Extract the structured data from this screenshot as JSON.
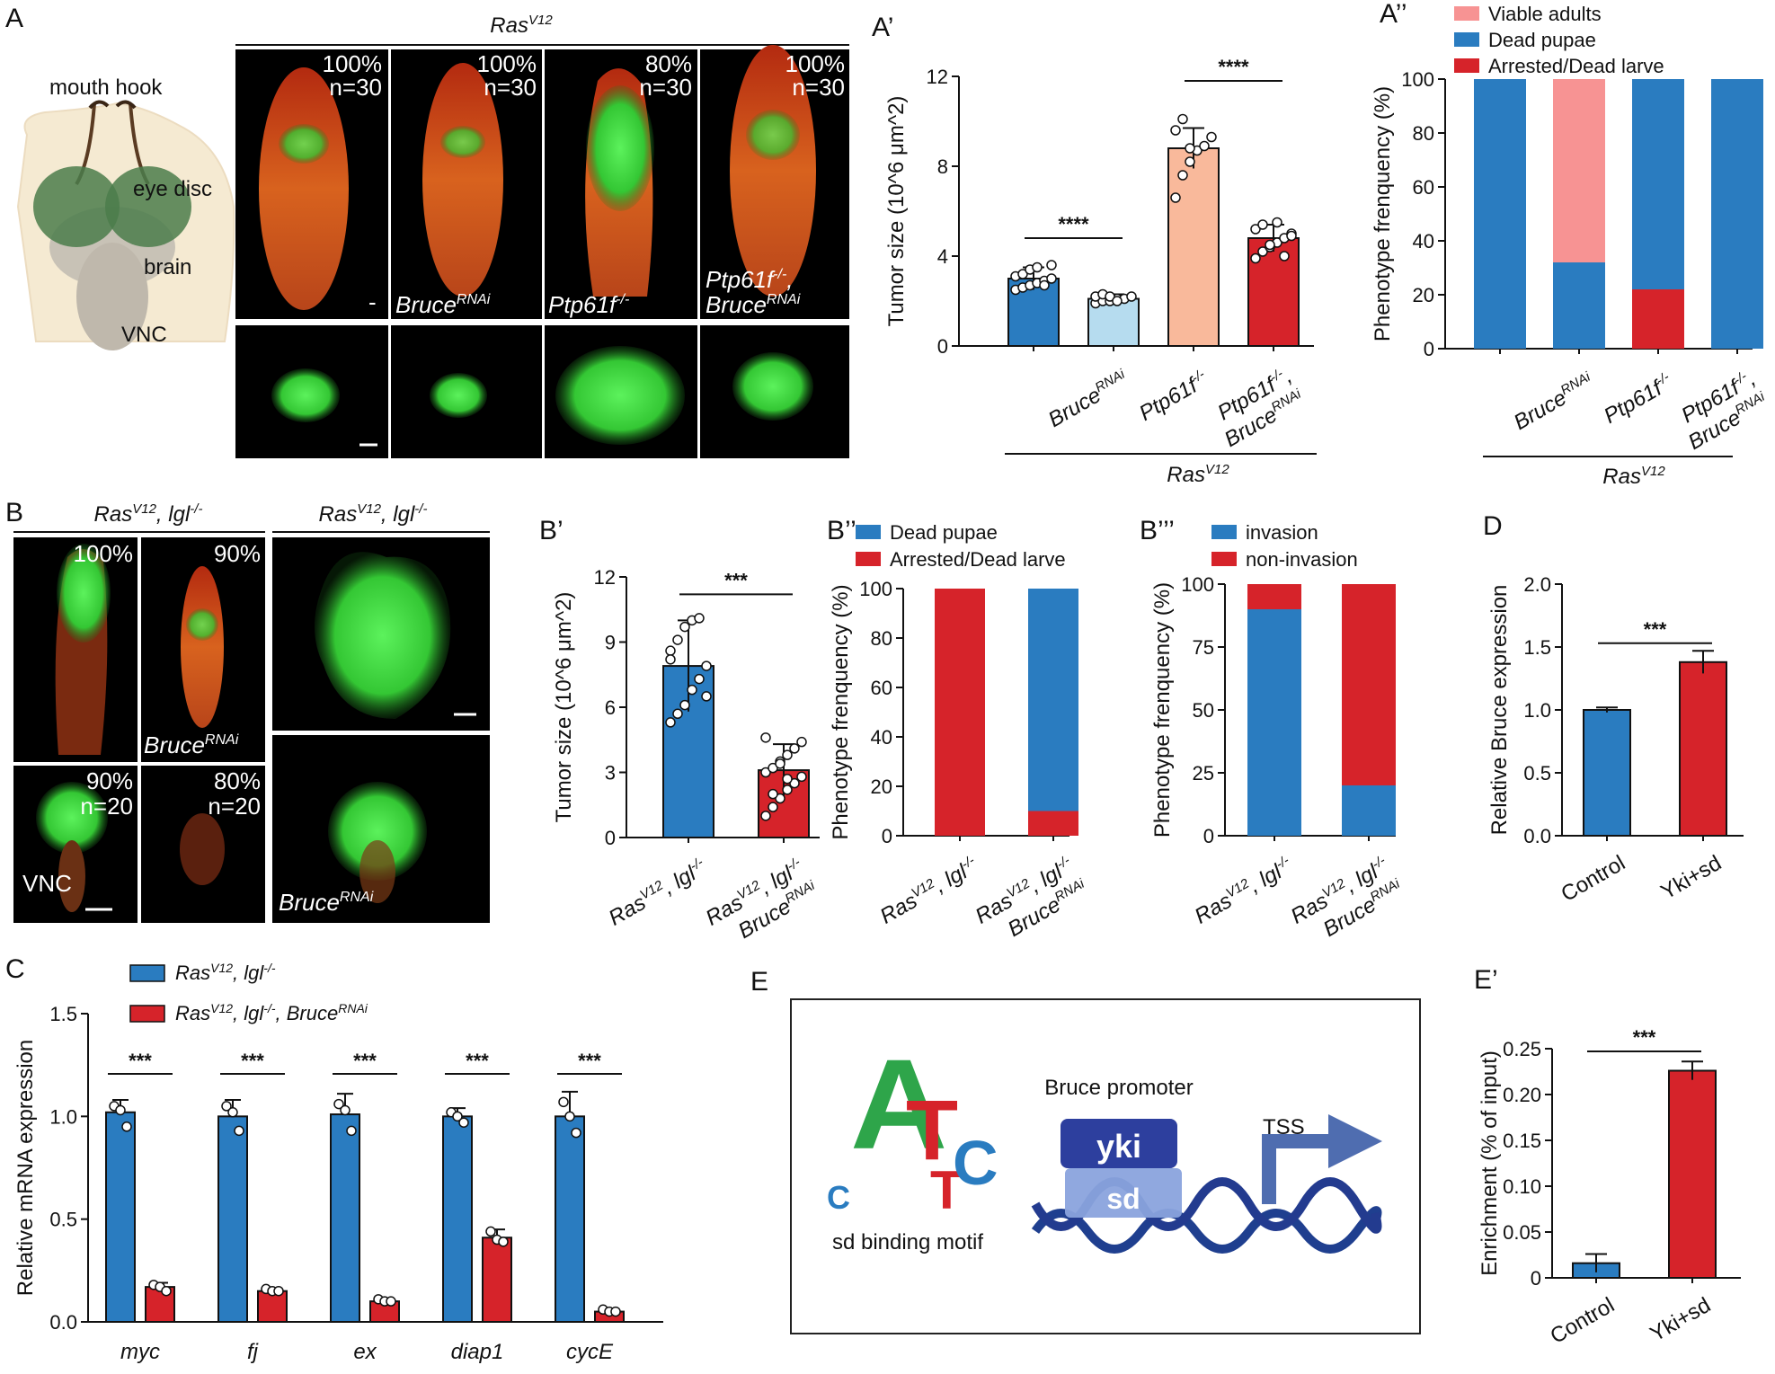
{
  "panels": {
    "A": {
      "label": "A",
      "schematic_labels": [
        "mouth hook",
        "eye disc",
        "brain",
        "VNC"
      ],
      "group_title": "Ras",
      "group_title_sup": "V12",
      "images": [
        {
          "pct": "100%",
          "n": "n=30",
          "genotype": "-",
          "genotype_sup": ""
        },
        {
          "pct": "100%",
          "n": "n=30",
          "genotype": "Bruce",
          "genotype_sup": "RNAi"
        },
        {
          "pct": "80%",
          "n": "n=30",
          "genotype": "Ptp61f",
          "genotype_sup": "-/-"
        },
        {
          "pct": "100%",
          "n": "n=30",
          "genotype": "Ptp61f",
          "genotype_sup": "-/-",
          "genotype2": "Bruce",
          "genotype2_sup": "RNAi"
        }
      ]
    },
    "B": {
      "label": "B",
      "group_title": "Ras",
      "group_title_sup": "V12",
      "group_title_rest": ", lgl",
      "group_title_rest_sup": "-/-",
      "images": [
        {
          "pct": "100%"
        },
        {
          "pct": "90%",
          "genotype": "Bruce",
          "genotype_sup": "RNAi"
        },
        {
          "pct": "90%",
          "n": "n=20",
          "tag": "VNC"
        },
        {
          "pct": "80%",
          "n": "n=20"
        },
        {
          "genotype": "Bruce",
          "genotype_sup": "RNAi"
        }
      ]
    },
    "E": {
      "label": "E",
      "motif_label": "sd binding motif",
      "promoter_label": "Bruce promoter",
      "yki": "yki",
      "sd": "sd",
      "tss": "TSS",
      "motif_letters": [
        "C",
        "A",
        "T",
        "T",
        "C"
      ]
    }
  },
  "colors": {
    "blue": "#2a7cc0",
    "light_blue": "#b6dcef",
    "salmon": "#f9b99b",
    "red": "#d6232a",
    "pink": "#f79393",
    "dark_blue": "#2d3f9e"
  },
  "chart_data": [
    {
      "id": "A1",
      "label": "A’",
      "type": "bar",
      "ylabel": "Tumor size (10^6 μm^2)",
      "ylim": [
        0,
        12
      ],
      "yticks": [
        0,
        4,
        8,
        12
      ],
      "categories": [
        "-",
        "BruceRNAi",
        "Ptp61f-/-",
        "Ptp61f-/-, BruceRNAi"
      ],
      "values": [
        3.0,
        2.1,
        8.8,
        4.8
      ],
      "errors": [
        0.5,
        0.2,
        0.9,
        0.6
      ],
      "colors": [
        "#2a7cc0",
        "#b6dcef",
        "#f9b99b",
        "#d6232a"
      ],
      "points": [
        [
          2.5,
          2.6,
          2.7,
          2.8,
          2.9,
          3.0,
          3.1,
          3.2,
          3.4,
          3.5,
          2.7,
          3.6
        ],
        [
          1.9,
          2.0,
          2.0,
          2.1,
          2.1,
          2.2,
          2.2,
          2.3,
          2.2,
          2.0
        ],
        [
          6.6,
          7.6,
          8.2,
          8.7,
          8.9,
          9.3,
          9.6,
          10.1,
          8.8
        ],
        [
          3.9,
          4.2,
          4.4,
          4.6,
          4.8,
          5.0,
          5.2,
          5.4,
          4.5,
          5.5,
          4.0,
          4.9
        ]
      ],
      "significance": [
        {
          "from": 0,
          "to": 1,
          "y": 4.8,
          "text": "****"
        },
        {
          "from": 2,
          "to": 3,
          "y": 11.8,
          "text": "****"
        }
      ],
      "group_label": "Ras",
      "group_label_sup": "V12"
    },
    {
      "id": "A2",
      "label": "A’’",
      "type": "bar",
      "stacked": true,
      "ylabel": "Phenotype frenquency (%)",
      "ylim": [
        0,
        100
      ],
      "yticks": [
        0,
        20,
        40,
        60,
        80,
        100
      ],
      "categories": [
        "-",
        "BruceRNAi",
        "Ptp61f-/-",
        "Ptp61f-/-, BruceRNAi"
      ],
      "series": [
        {
          "name": "Arrested/Dead larve",
          "values": [
            0,
            0,
            22,
            0
          ],
          "color": "#d6232a"
        },
        {
          "name": "Dead pupae",
          "values": [
            100,
            32,
            78,
            100
          ],
          "color": "#2a7cc0"
        },
        {
          "name": "Viable adults",
          "values": [
            0,
            68,
            0,
            0
          ],
          "color": "#f79393"
        }
      ],
      "legend": [
        "Viable adults",
        "Dead pupae",
        "Arrested/Dead larve"
      ],
      "group_label": "Ras",
      "group_label_sup": "V12"
    },
    {
      "id": "B1",
      "label": "B’",
      "type": "bar",
      "ylabel": "Tumor size (10^6 μm^2)",
      "ylim": [
        0,
        12
      ],
      "yticks": [
        0,
        3,
        6,
        9,
        12
      ],
      "categories": [
        "RasV12, lgl-/-",
        "RasV12, lgl-/- BruceRNAi"
      ],
      "values": [
        7.9,
        3.1
      ],
      "errors": [
        2.1,
        1.2
      ],
      "colors": [
        "#2a7cc0",
        "#d6232a"
      ],
      "points": [
        [
          5.3,
          5.7,
          6.1,
          6.8,
          7.3,
          7.9,
          8.6,
          9.1,
          9.7,
          10.0,
          10.1,
          6.5,
          8.2
        ],
        [
          1.0,
          1.4,
          1.8,
          2.2,
          2.5,
          2.8,
          3.0,
          3.2,
          3.5,
          3.8,
          4.1,
          4.4,
          4.6,
          2.0,
          3.4,
          2.7
        ]
      ],
      "significance": [
        {
          "from": 0,
          "to": 1,
          "y": 11.2,
          "text": "***"
        }
      ]
    },
    {
      "id": "B2",
      "label": "B’’",
      "type": "bar",
      "stacked": true,
      "ylabel": "Phenotype frenquency (%)",
      "ylim": [
        0,
        100
      ],
      "yticks": [
        0,
        20,
        40,
        60,
        80,
        100
      ],
      "categories": [
        "RasV12, lgl-/-",
        "RasV12, lgl-/- BruceRNAi"
      ],
      "series": [
        {
          "name": "Arrested/Dead larve",
          "values": [
            100,
            10
          ],
          "color": "#d6232a"
        },
        {
          "name": "Dead pupae",
          "values": [
            0,
            90
          ],
          "color": "#2a7cc0"
        }
      ],
      "legend": [
        "Dead pupae",
        "Arrested/Dead larve"
      ]
    },
    {
      "id": "B3",
      "label": "B’’’",
      "type": "bar",
      "stacked": true,
      "ylabel": "Phenotype frenquency (%)",
      "ylim": [
        0,
        100
      ],
      "yticks": [
        0,
        25,
        50,
        75,
        100
      ],
      "categories": [
        "RasV12, lgl-/-",
        "RasV12, lgl-/- BruceRNAi"
      ],
      "series": [
        {
          "name": "invasion",
          "values": [
            90,
            20
          ],
          "color": "#2a7cc0"
        },
        {
          "name": "non-invasion",
          "values": [
            10,
            80
          ],
          "color": "#d6232a"
        }
      ],
      "legend": [
        "invasion",
        "non-invasion"
      ]
    },
    {
      "id": "D",
      "label": "D",
      "type": "bar",
      "ylabel": "Relative Bruce expression",
      "ylim": [
        0,
        2.0
      ],
      "yticks": [
        "0.0",
        "0.5",
        "1.0",
        "1.5",
        "2.0"
      ],
      "categories": [
        "Control",
        "Yki+sd"
      ],
      "values": [
        1.0,
        1.38
      ],
      "errors": [
        0.02,
        0.09
      ],
      "colors": [
        "#2a7cc0",
        "#d6232a"
      ],
      "significance": [
        {
          "from": 0,
          "to": 1,
          "y": 1.53,
          "text": "***"
        }
      ]
    },
    {
      "id": "C",
      "label": "C",
      "type": "bar",
      "ylabel": "Relative mRNA expression",
      "ylim": [
        0,
        1.5
      ],
      "yticks": [
        "0.0",
        "0.5",
        "1.0",
        "1.5"
      ],
      "categories": [
        "myc",
        "fj",
        "ex",
        "diap1",
        "cycE"
      ],
      "series": [
        {
          "name": "RasV12, lgl-/-",
          "values": [
            1.02,
            1.0,
            1.01,
            1.0,
            1.0
          ],
          "errors": [
            0.06,
            0.08,
            0.1,
            0.04,
            0.12
          ],
          "color": "#2a7cc0",
          "points": [
            [
              1.05,
              1.03,
              0.95
            ],
            [
              1.05,
              1.02,
              0.93
            ],
            [
              1.06,
              1.03,
              0.93
            ],
            [
              1.02,
              1.0,
              0.97
            ],
            [
              1.07,
              1.0,
              0.92
            ]
          ]
        },
        {
          "name": "RasV12, lgl-/-, BruceRNAi",
          "values": [
            0.17,
            0.15,
            0.1,
            0.41,
            0.05
          ],
          "errors": [
            0.02,
            0.01,
            0.01,
            0.04,
            0.01
          ],
          "color": "#d6232a",
          "points": [
            [
              0.18,
              0.17,
              0.15
            ],
            [
              0.16,
              0.15,
              0.15
            ],
            [
              0.11,
              0.1,
              0.1
            ],
            [
              0.44,
              0.4,
              0.39
            ],
            [
              0.06,
              0.05,
              0.05
            ]
          ]
        }
      ],
      "legend": [
        "Ras^V12, lgl^-/-",
        "Ras^V12, lgl^-/-, Bruce^RNAi"
      ],
      "significance_text": "***"
    },
    {
      "id": "E1",
      "label": "E’",
      "type": "bar",
      "ylabel": "Enrichment (% of input)",
      "ylim": [
        0,
        0.25
      ],
      "yticks": [
        "0",
        "0.05",
        "0.10",
        "0.15",
        "0.20",
        "0.25"
      ],
      "categories": [
        "Control",
        "Yki+sd"
      ],
      "values": [
        0.016,
        0.226
      ],
      "errors": [
        0.01,
        0.01
      ],
      "colors": [
        "#2a7cc0",
        "#d6232a"
      ],
      "significance": [
        {
          "from": 0,
          "to": 1,
          "y": 0.247,
          "text": "***"
        }
      ]
    }
  ]
}
